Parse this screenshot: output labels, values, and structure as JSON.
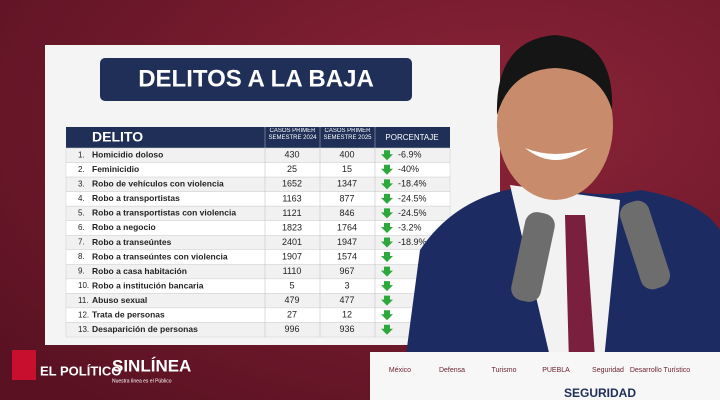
{
  "header": {
    "title": "DELITOS A LA BAJA"
  },
  "table": {
    "columns": [
      "DELITO",
      "CASOS PRIMER SEMESTRE 2024",
      "CASOS PRIMER SEMESTRE 2025",
      "PORCENTAJE"
    ],
    "rows": [
      {
        "num": "1.",
        "delito": "Homicidio doloso",
        "c2024": 430,
        "c2025": 400,
        "pct": "-6.9%"
      },
      {
        "num": "2.",
        "delito": "Feminicidio",
        "c2024": 25,
        "c2025": 15,
        "pct": "-40%"
      },
      {
        "num": "3.",
        "delito": "Robo de vehículos con violencia",
        "c2024": 1652,
        "c2025": 1347,
        "pct": "-18.4%"
      },
      {
        "num": "4.",
        "delito": "Robo a transportistas",
        "c2024": 1163,
        "c2025": 877,
        "pct": "-24.5%"
      },
      {
        "num": "5.",
        "delito": "Robo a transportistas con violencia",
        "c2024": 1121,
        "c2025": 846,
        "pct": "-24.5%"
      },
      {
        "num": "6.",
        "delito": "Robo a negocio",
        "c2024": 1823,
        "c2025": 1764,
        "pct": "-3.2%"
      },
      {
        "num": "7.",
        "delito": "Robo a transeúntes",
        "c2024": 2401,
        "c2025": 1947,
        "pct": "-18.9%"
      },
      {
        "num": "8.",
        "delito": "Robo a transeúntes con violencia",
        "c2024": 1907,
        "c2025": 1574
      },
      {
        "num": "9.",
        "delito": "Robo a casa habitación",
        "c2024": 1110,
        "c2025": 967
      },
      {
        "num": "10.",
        "delito": "Robo a institución bancaria",
        "c2024": 5,
        "c2025": 3
      },
      {
        "num": "11.",
        "delito": "Abuso sexual",
        "c2024": 479,
        "c2025": 477
      },
      {
        "num": "12.",
        "delito": "Trata de personas",
        "c2024": 27,
        "c2025": 12
      },
      {
        "num": "13.",
        "delito": "Desaparición de personas",
        "c2024": 996,
        "c2025": 936
      }
    ]
  },
  "logos": {
    "brand1": "EL POLÍTICO",
    "brand2": "SINLÍNEA",
    "brand2_tagline": "Nuestra línea es el Público"
  },
  "banner": {
    "items": [
      "México",
      "Defensa",
      "Turismo",
      "PUEBLA",
      "Seguridad",
      "Desarrollo Turístico"
    ],
    "footer": "SEGURIDAD"
  }
}
